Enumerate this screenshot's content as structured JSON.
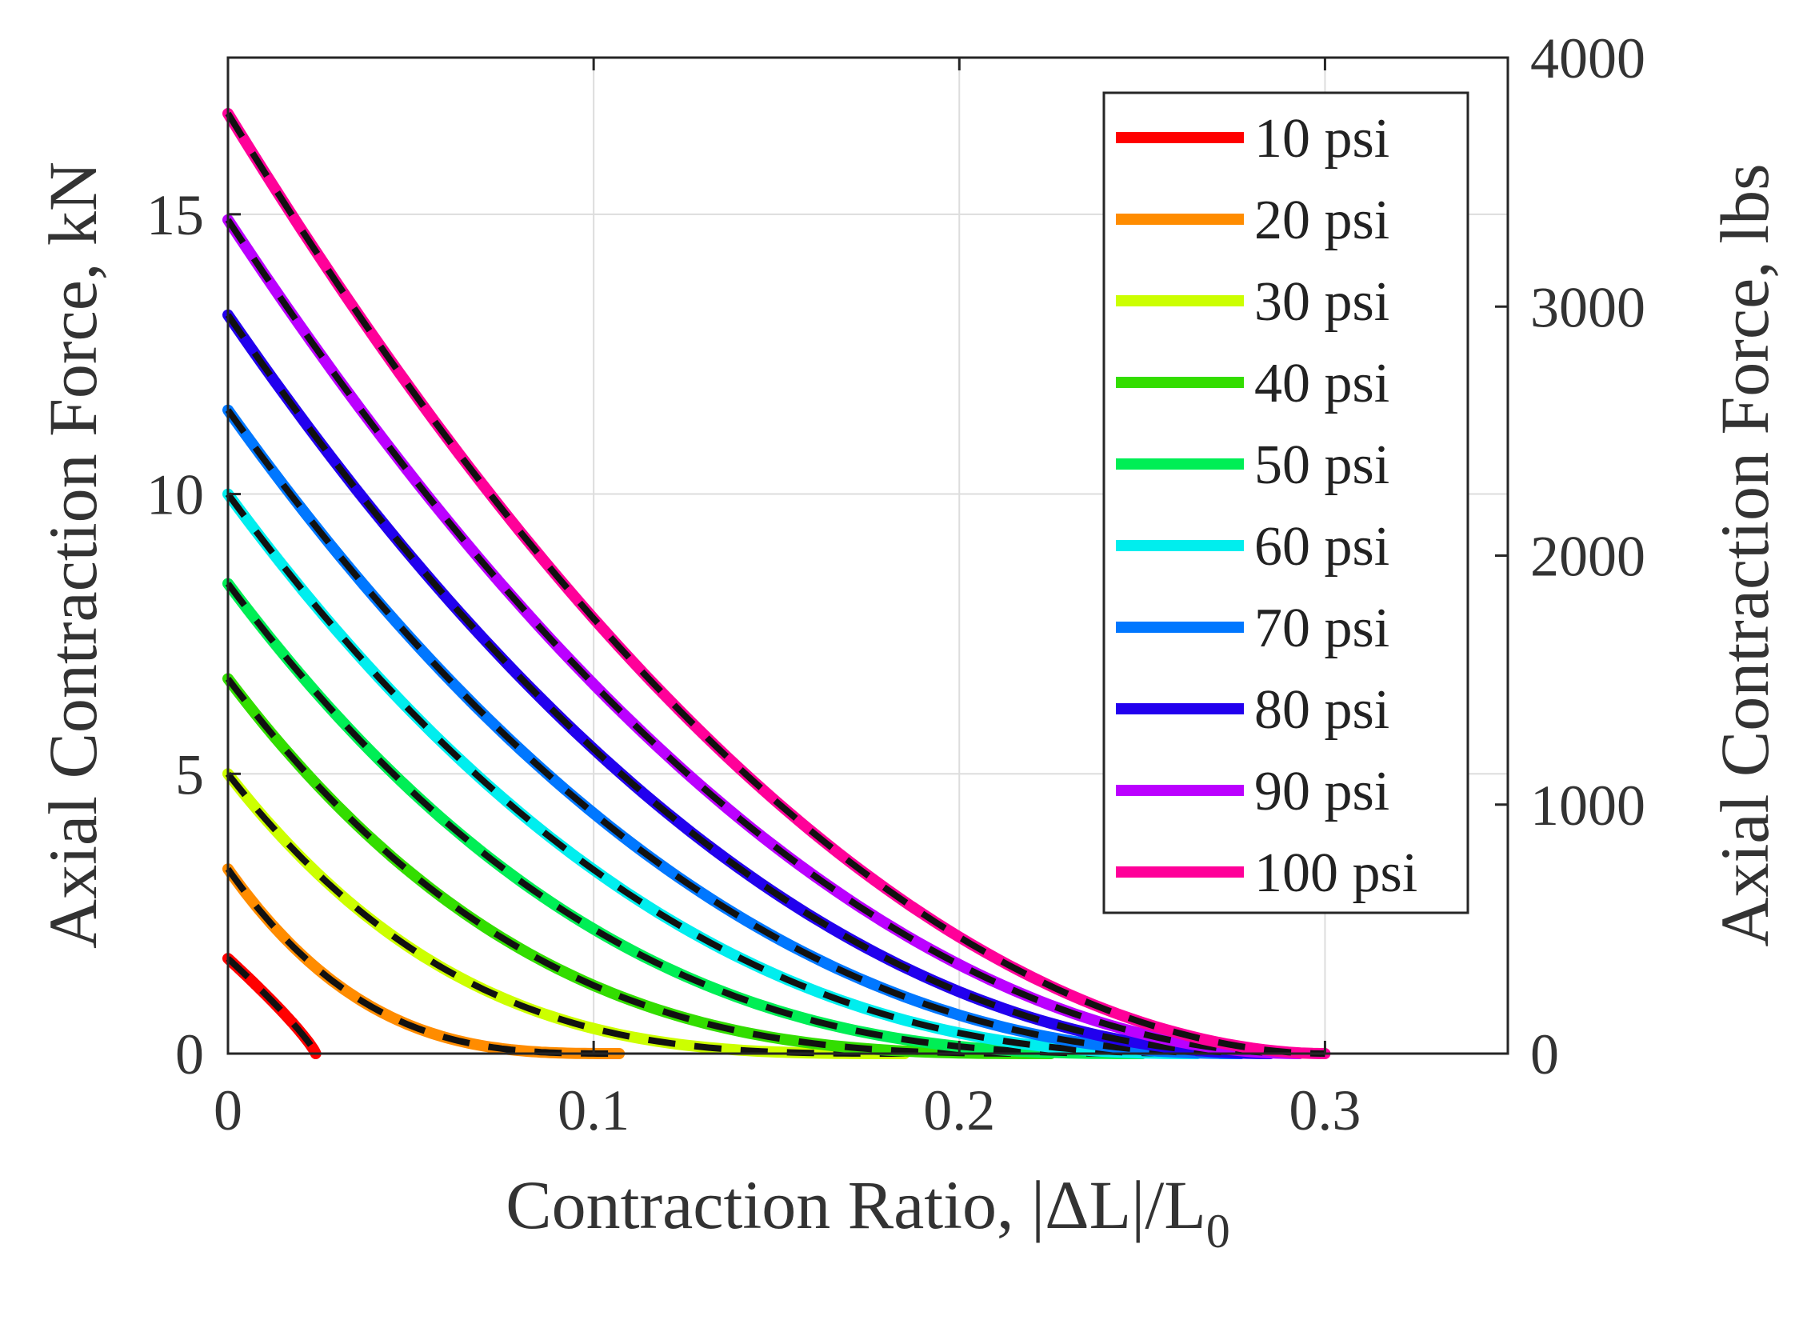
{
  "chart_data": {
    "type": "line",
    "title": "",
    "xlabel": "Contraction Ratio, |ΔL|/L",
    "xlabel_subscript": "0",
    "ylabel_left": "Axial Contraction Force, kN",
    "ylabel_right": "Axial Contraction Force, lbs",
    "xlim": [
      0,
      0.35
    ],
    "ylim_left": [
      0,
      17.8
    ],
    "ylim_right": [
      0,
      4000
    ],
    "x_ticks": [
      0,
      0.1,
      0.2,
      0.3
    ],
    "x_tick_labels": [
      "0",
      "0.1",
      "0.2",
      "0.3"
    ],
    "y_ticks_left": [
      0,
      5,
      10,
      15
    ],
    "y_tick_labels_left": [
      "0",
      "5",
      "10",
      "15"
    ],
    "y_ticks_right": [
      0,
      1000,
      2000,
      3000,
      4000
    ],
    "y_tick_labels_right": [
      "0",
      "1000",
      "2000",
      "3000",
      "4000"
    ],
    "grid": true,
    "legend_position": "top-right",
    "overlay": "black dashed model curves over each colored measured curve",
    "series": [
      {
        "name": "10 psi",
        "color": "#ff0000",
        "f0": 1.7,
        "xmax": 0.024,
        "shape": 0.85
      },
      {
        "name": "20 psi",
        "color": "#ff8c00",
        "f0": 3.3,
        "xmax": 0.107,
        "shape": 3.0
      },
      {
        "name": "30 psi",
        "color": "#ccff00",
        "f0": 5.0,
        "xmax": 0.185,
        "shape": 3.1
      },
      {
        "name": "40 psi",
        "color": "#33dd00",
        "f0": 6.7,
        "xmax": 0.225,
        "shape": 2.9
      },
      {
        "name": "50 psi",
        "color": "#00ee55",
        "f0": 8.4,
        "xmax": 0.25,
        "shape": 2.6
      },
      {
        "name": "60 psi",
        "color": "#00eeee",
        "f0": 10.0,
        "xmax": 0.265,
        "shape": 2.35
      },
      {
        "name": "70 psi",
        "color": "#0077ff",
        "f0": 11.5,
        "xmax": 0.277,
        "shape": 2.2
      },
      {
        "name": "80 psi",
        "color": "#2200ee",
        "f0": 13.2,
        "xmax": 0.285,
        "shape": 2.05
      },
      {
        "name": "90 psi",
        "color": "#bb00ff",
        "f0": 14.9,
        "xmax": 0.293,
        "shape": 1.95
      },
      {
        "name": "100 psi",
        "color": "#ff0099",
        "f0": 16.8,
        "xmax": 0.3,
        "shape": 1.9
      }
    ]
  }
}
